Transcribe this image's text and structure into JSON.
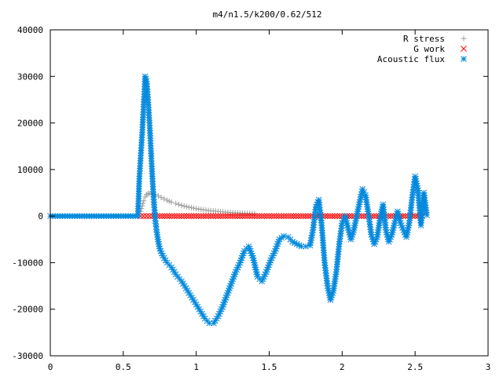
{
  "chart_data": {
    "type": "scatter",
    "title": "m4/n1.5/k200/0.62/512",
    "xlim": [
      0,
      3
    ],
    "ylim": [
      -30000,
      40000
    ],
    "x_ticks": [
      0,
      0.5,
      1,
      1.5,
      2,
      2.5,
      3
    ],
    "x_tick_labels": [
      "0",
      "0.5",
      "1",
      "1.5",
      "2",
      "2.5",
      "3"
    ],
    "y_ticks": [
      -30000,
      -20000,
      -10000,
      0,
      10000,
      20000,
      30000,
      40000
    ],
    "y_tick_labels": [
      "-30000",
      "-20000",
      "-10000",
      "0",
      "10000",
      "20000",
      "30000",
      "40000"
    ],
    "grid": false,
    "legend_position": "top-right",
    "series": [
      {
        "name": "R stress",
        "marker": "plus",
        "color": "#a0a0a0",
        "x": [
          0.62,
          0.63,
          0.64,
          0.65,
          0.66,
          0.67,
          0.68,
          0.7,
          0.72,
          0.74,
          0.76,
          0.78,
          0.8,
          0.83,
          0.86,
          0.9,
          0.95,
          1.0,
          1.05,
          1.1,
          1.15,
          1.2,
          1.25,
          1.3,
          1.35,
          1.4
        ],
        "y": [
          1000,
          2200,
          3300,
          4100,
          4600,
          4800,
          4900,
          4800,
          4600,
          4300,
          4000,
          3700,
          3400,
          3000,
          2700,
          2300,
          1900,
          1600,
          1350,
          1150,
          1000,
          850,
          750,
          650,
          580,
          520
        ]
      },
      {
        "name": "G work",
        "marker": "cross",
        "color": "#ff0000",
        "x": [
          0.62,
          0.7,
          0.8,
          0.9,
          1.0,
          1.1,
          1.2,
          1.3,
          1.4,
          1.5,
          1.6,
          1.7,
          1.8,
          1.9,
          2.0,
          2.1,
          2.2,
          2.3,
          2.4,
          2.5,
          2.55
        ],
        "y": [
          0,
          0,
          0,
          0,
          0,
          0,
          0,
          0,
          0,
          0,
          0,
          0,
          0,
          0,
          0,
          0,
          0,
          0,
          0,
          0,
          0
        ]
      },
      {
        "name": "Acoustic flux",
        "marker": "star",
        "color": "#0088dd",
        "x": [
          0.0,
          0.05,
          0.1,
          0.15,
          0.2,
          0.25,
          0.3,
          0.35,
          0.4,
          0.45,
          0.5,
          0.55,
          0.6,
          0.61,
          0.62,
          0.63,
          0.64,
          0.65,
          0.66,
          0.67,
          0.68,
          0.69,
          0.7,
          0.71,
          0.72,
          0.73,
          0.74,
          0.75,
          0.77,
          0.8,
          0.83,
          0.86,
          0.9,
          0.93,
          0.96,
          1.0,
          1.03,
          1.06,
          1.09,
          1.12,
          1.15,
          1.18,
          1.21,
          1.24,
          1.27,
          1.3,
          1.33,
          1.36,
          1.39,
          1.42,
          1.45,
          1.48,
          1.51,
          1.54,
          1.57,
          1.6,
          1.63,
          1.66,
          1.69,
          1.72,
          1.75,
          1.78,
          1.8,
          1.82,
          1.84,
          1.86,
          1.88,
          1.9,
          1.92,
          1.94,
          1.96,
          1.98,
          2.0,
          2.02,
          2.04,
          2.06,
          2.08,
          2.1,
          2.12,
          2.14,
          2.16,
          2.18,
          2.2,
          2.22,
          2.24,
          2.26,
          2.28,
          2.3,
          2.32,
          2.34,
          2.36,
          2.38,
          2.4,
          2.42,
          2.44,
          2.46,
          2.48,
          2.5,
          2.52,
          2.54,
          2.56,
          2.58
        ],
        "y": [
          0,
          0,
          0,
          0,
          0,
          0,
          0,
          0,
          0,
          0,
          0,
          0,
          0,
          8000,
          13000,
          18000,
          24000,
          30000,
          29000,
          25000,
          20000,
          14000,
          8000,
          3000,
          -1000,
          -3500,
          -5500,
          -7000,
          -8500,
          -10000,
          -11000,
          -12500,
          -14000,
          -15500,
          -17000,
          -19000,
          -20500,
          -22000,
          -23000,
          -23000,
          -21500,
          -19500,
          -17000,
          -14500,
          -12000,
          -10000,
          -7500,
          -6500,
          -9000,
          -13000,
          -14000,
          -12000,
          -9500,
          -7500,
          -5000,
          -4300,
          -4500,
          -5500,
          -6000,
          -6500,
          -6500,
          -6300,
          -3000,
          2000,
          3500,
          -2000,
          -10000,
          -15000,
          -18000,
          -16000,
          -12000,
          -6000,
          -1500,
          0,
          -2500,
          -5000,
          -3000,
          0,
          3000,
          5800,
          4500,
          500,
          -4000,
          -6000,
          -4500,
          -500,
          2500,
          -3000,
          -5500,
          -4000,
          -1500,
          1000,
          -1500,
          -3000,
          -4500,
          -1500,
          4000,
          8500,
          5500,
          -2000,
          5000,
          200
        ]
      }
    ]
  }
}
